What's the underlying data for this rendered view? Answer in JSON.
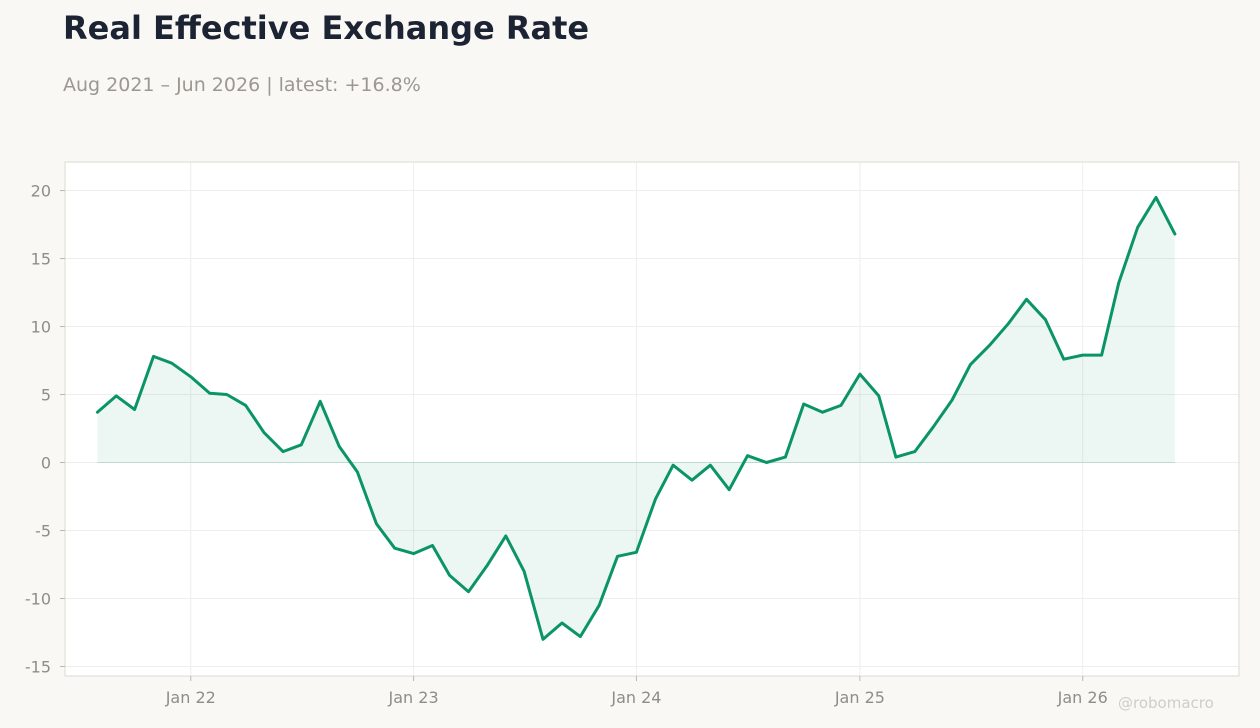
{
  "header": {
    "title": "Real Effective Exchange Rate",
    "subtitle": "Aug 2021 – Jun 2026 | latest: +16.8%"
  },
  "watermark": "@robomacro",
  "colors": {
    "line": "#0a9468",
    "fill": "#0a9468",
    "grid": "#efeeeb",
    "frame": "#dcdad3",
    "background": "#f9f8f5",
    "plot_background": "#ffffff"
  },
  "chart_data": {
    "type": "area",
    "title": "Real Effective Exchange Rate",
    "subtitle": "Aug 2021 – Jun 2026 | latest: +16.8%",
    "xlabel": "",
    "ylabel": "",
    "ylim": [
      -15.7,
      22.1
    ],
    "xlim": [
      "2021-06-09",
      "2026-09-14"
    ],
    "grid": true,
    "legend": "none",
    "x_ticks": [
      {
        "date": "2022-01-01",
        "label": "Jan 22"
      },
      {
        "date": "2023-01-01",
        "label": "Jan 23"
      },
      {
        "date": "2024-01-01",
        "label": "Jan 24"
      },
      {
        "date": "2025-01-01",
        "label": "Jan 25"
      },
      {
        "date": "2026-01-01",
        "label": "Jan 26"
      }
    ],
    "y_ticks": [
      20,
      15,
      10,
      5,
      0,
      -5,
      -10,
      -15
    ],
    "series": [
      {
        "dates": [
          "2021-08",
          "2021-09",
          "2021-10",
          "2021-11",
          "2021-12",
          "2022-01",
          "2022-02",
          "2022-03",
          "2022-04",
          "2022-05",
          "2022-06",
          "2022-07",
          "2022-08",
          "2022-09",
          "2022-10",
          "2022-11",
          "2022-12",
          "2023-01",
          "2023-02",
          "2023-03",
          "2023-04",
          "2023-05",
          "2023-06",
          "2023-07",
          "2023-08",
          "2023-09",
          "2023-10",
          "2023-11",
          "2023-12",
          "2024-01",
          "2024-02",
          "2024-03",
          "2024-04",
          "2024-05",
          "2024-06",
          "2024-07",
          "2024-08",
          "2024-09",
          "2024-10",
          "2024-11",
          "2024-12",
          "2025-01",
          "2025-02",
          "2025-03",
          "2025-04",
          "2025-05",
          "2025-06",
          "2025-07",
          "2025-08",
          "2025-09",
          "2025-10",
          "2025-11",
          "2025-12",
          "2026-01",
          "2026-02",
          "2026-03",
          "2026-04",
          "2026-05",
          "2026-06"
        ],
        "values": [
          3.7,
          4.9,
          3.9,
          7.8,
          7.3,
          6.3,
          5.1,
          5.0,
          4.2,
          2.2,
          0.8,
          1.3,
          4.5,
          1.2,
          -0.7,
          -4.5,
          -6.3,
          -6.7,
          -6.1,
          -8.3,
          -9.5,
          -7.6,
          -5.4,
          -8.0,
          -13.0,
          -11.8,
          -12.8,
          -10.5,
          -6.9,
          -6.6,
          -2.7,
          -0.2,
          -1.3,
          -0.2,
          -2.0,
          0.5,
          0.0,
          0.4,
          4.3,
          3.7,
          4.2,
          6.5,
          4.9,
          0.4,
          0.8,
          2.6,
          4.6,
          7.2,
          8.6,
          10.2,
          12.0,
          10.5,
          7.6,
          7.9,
          7.9,
          13.2,
          17.3,
          19.5,
          16.8
        ]
      }
    ]
  }
}
